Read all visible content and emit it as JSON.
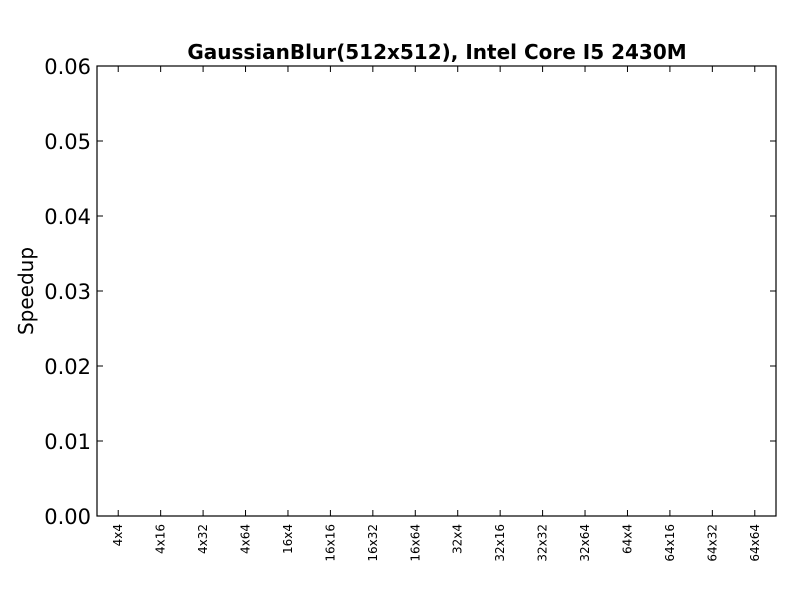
{
  "chart_data": {
    "type": "bar",
    "title": "GaussianBlur(512x512), Intel Core I5 2430M",
    "xlabel": "",
    "ylabel": "Speedup",
    "categories": [
      "4x4",
      "4x16",
      "4x32",
      "4x64",
      "16x4",
      "16x16",
      "16x32",
      "16x64",
      "32x4",
      "32x16",
      "32x32",
      "32x64",
      "64x4",
      "64x16",
      "64x32",
      "64x64"
    ],
    "series": [
      {
        "values": [
          0,
          0,
          0,
          0,
          0,
          0,
          0,
          0,
          0,
          0,
          0,
          0,
          0,
          0,
          0,
          0
        ]
      }
    ],
    "ylim": [
      0,
      0.06
    ],
    "yticks": [
      "0.00",
      "0.01",
      "0.02",
      "0.03",
      "0.04",
      "0.05",
      "0.06"
    ],
    "grid": false,
    "legend": "none"
  }
}
